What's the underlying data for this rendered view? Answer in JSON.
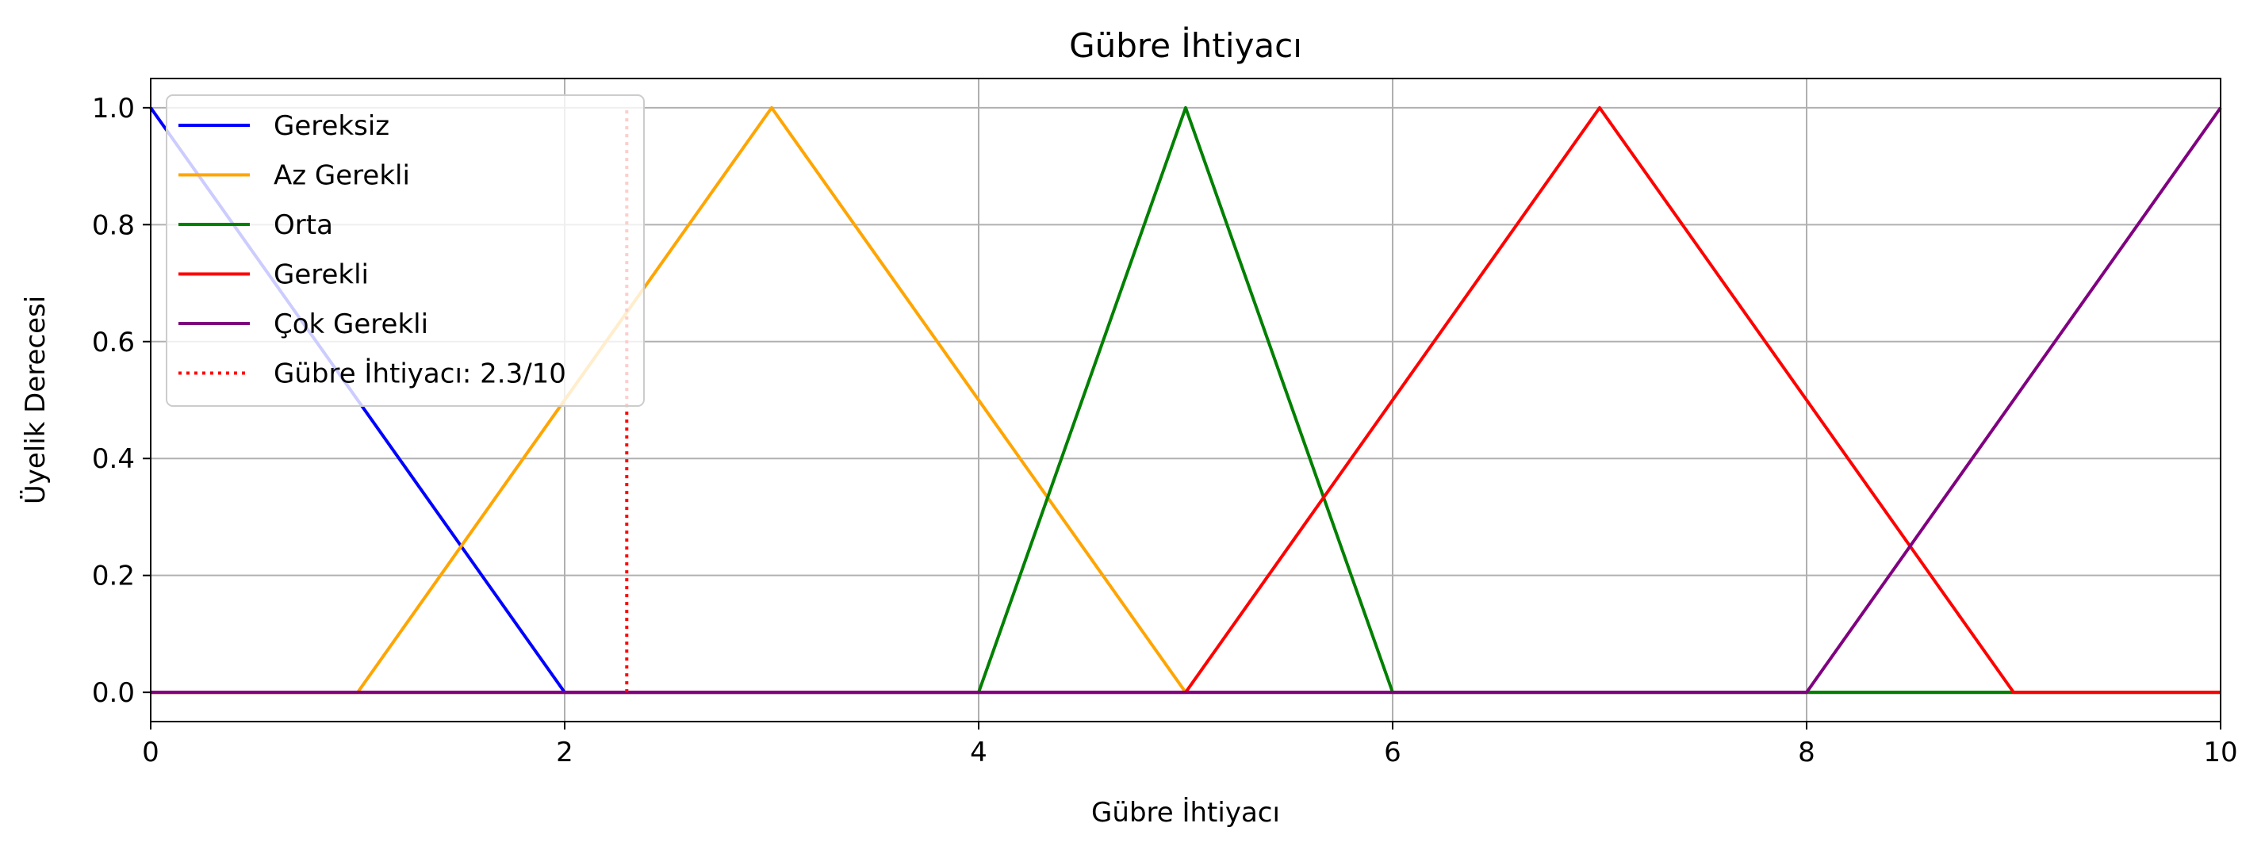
{
  "chart_data": {
    "type": "line",
    "title": "Gübre İhtiyacı",
    "xlabel": "Gübre İhtiyacı",
    "ylabel": "Üyelik Derecesi",
    "xlim": [
      0,
      10
    ],
    "ylim": [
      -0.05,
      1.05
    ],
    "xticks": [
      0,
      2,
      4,
      6,
      8,
      10
    ],
    "yticks": [
      0.0,
      0.2,
      0.4,
      0.6,
      0.8,
      1.0
    ],
    "xtick_labels": [
      "0",
      "2",
      "4",
      "6",
      "8",
      "10"
    ],
    "ytick_labels": [
      "0.0",
      "0.2",
      "0.4",
      "0.6",
      "0.8",
      "1.0"
    ],
    "grid": true,
    "legend_position": "upper-left",
    "series": [
      {
        "name": "Gereksiz",
        "color": "#0000ff",
        "style": "solid",
        "x": [
          0,
          2,
          10
        ],
        "y": [
          1,
          0,
          0
        ]
      },
      {
        "name": "Az Gerekli",
        "color": "#ffa500",
        "style": "solid",
        "x": [
          0,
          1,
          3,
          5,
          10
        ],
        "y": [
          0,
          0,
          1,
          0,
          0
        ]
      },
      {
        "name": "Orta",
        "color": "#008000",
        "style": "solid",
        "x": [
          0,
          4,
          5,
          6,
          10
        ],
        "y": [
          0,
          0,
          1,
          0,
          0
        ]
      },
      {
        "name": "Gerekli",
        "color": "#ff0000",
        "style": "solid",
        "x": [
          0,
          5,
          7,
          9,
          10
        ],
        "y": [
          0,
          0,
          1,
          0,
          0
        ]
      },
      {
        "name": "Çok Gerekli",
        "color": "#800080",
        "style": "solid",
        "x": [
          0,
          8,
          10
        ],
        "y": [
          0,
          0,
          1
        ]
      },
      {
        "name": "Gübre İhtiyacı: 2.3/10",
        "color": "#ff0000",
        "style": "dotted",
        "x": [
          2.3,
          2.3
        ],
        "y": [
          0,
          1
        ]
      }
    ]
  }
}
